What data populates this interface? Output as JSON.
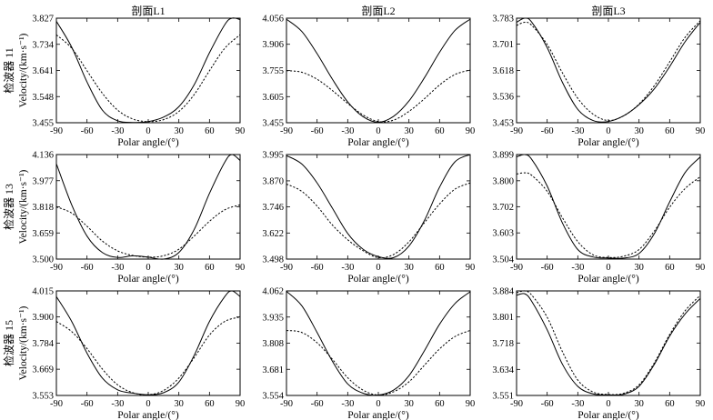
{
  "figure": {
    "column_titles": [
      "剖面L1",
      "剖面L2",
      "剖面L3"
    ],
    "row_titles": [
      "检波器 11",
      "检波器 13",
      "检波器 15"
    ],
    "ylabel": "Velocity/(km·s⁻¹)",
    "xlabel": "Polar angle/(°)"
  },
  "chart_data": [
    {
      "type": "line",
      "title": "剖面L1",
      "row_title": "检波器 11",
      "xlabel": "Polar angle/(°)",
      "ylabel": "Velocity/(km·s⁻¹)",
      "xlim": [
        -90,
        90
      ],
      "ylim": [
        3.455,
        3.827
      ],
      "xticks": [
        -90,
        -60,
        -30,
        0,
        30,
        60,
        90
      ],
      "yticks": [
        "3.455",
        "3.548",
        "3.641",
        "3.734",
        "3.827"
      ],
      "series": [
        {
          "name": "solid",
          "style": "solid",
          "x": [
            -90,
            -75,
            -60,
            -45,
            -30,
            -15,
            0,
            15,
            30,
            45,
            60,
            75,
            82,
            90
          ],
          "values": [
            3.816,
            3.724,
            3.6,
            3.5,
            3.462,
            3.456,
            3.459,
            3.475,
            3.512,
            3.59,
            3.704,
            3.804,
            3.827,
            3.822
          ]
        },
        {
          "name": "dashed",
          "style": "dashed",
          "x": [
            -90,
            -75,
            -60,
            -45,
            -30,
            -15,
            0,
            15,
            30,
            45,
            60,
            75,
            90
          ],
          "values": [
            3.768,
            3.72,
            3.64,
            3.56,
            3.5,
            3.468,
            3.459,
            3.466,
            3.495,
            3.555,
            3.64,
            3.72,
            3.768
          ]
        }
      ]
    },
    {
      "type": "line",
      "title": "剖面L2",
      "row_title": "检波器 11",
      "xlabel": "Polar angle/(°)",
      "ylabel": "Velocity/(km·s⁻¹)",
      "xlim": [
        -90,
        90
      ],
      "ylim": [
        3.455,
        4.056
      ],
      "xticks": [
        -90,
        -60,
        -30,
        0,
        30,
        60,
        90
      ],
      "yticks": [
        "3.455",
        "3.605",
        "3.755",
        "3.906",
        "4.056"
      ],
      "series": [
        {
          "name": "solid",
          "style": "solid",
          "x": [
            -90,
            -75,
            -60,
            -45,
            -30,
            -15,
            0,
            15,
            30,
            45,
            60,
            75,
            90
          ],
          "values": [
            4.05,
            3.98,
            3.852,
            3.705,
            3.575,
            3.49,
            3.458,
            3.492,
            3.58,
            3.712,
            3.86,
            3.985,
            4.05
          ]
        },
        {
          "name": "dashed",
          "style": "dashed",
          "x": [
            -90,
            -75,
            -60,
            -45,
            -30,
            -15,
            0,
            15,
            30,
            45,
            60,
            75,
            90
          ],
          "values": [
            3.755,
            3.745,
            3.705,
            3.64,
            3.566,
            3.5,
            3.462,
            3.47,
            3.52,
            3.592,
            3.672,
            3.732,
            3.758
          ]
        }
      ]
    },
    {
      "type": "line",
      "title": "剖面L3",
      "row_title": "检波器 11",
      "xlabel": "Polar angle/(°)",
      "ylabel": "Velocity/(km·s⁻¹)",
      "xlim": [
        -90,
        90
      ],
      "ylim": [
        3.453,
        3.783
      ],
      "xticks": [
        -90,
        -60,
        -30,
        0,
        30,
        60,
        90
      ],
      "yticks": [
        "3.453",
        "3.536",
        "3.618",
        "3.701",
        "3.783"
      ],
      "series": [
        {
          "name": "solid",
          "style": "solid",
          "x": [
            -90,
            -82,
            -75,
            -60,
            -45,
            -30,
            -15,
            0,
            15,
            30,
            45,
            60,
            75,
            90
          ],
          "values": [
            3.77,
            3.783,
            3.77,
            3.69,
            3.58,
            3.495,
            3.46,
            3.457,
            3.475,
            3.51,
            3.56,
            3.63,
            3.708,
            3.77
          ]
        },
        {
          "name": "dashed",
          "style": "dashed",
          "x": [
            -90,
            -82,
            -75,
            -60,
            -45,
            -30,
            -15,
            0,
            15,
            30,
            45,
            60,
            75,
            90
          ],
          "values": [
            3.76,
            3.77,
            3.76,
            3.7,
            3.61,
            3.53,
            3.48,
            3.46,
            3.475,
            3.512,
            3.57,
            3.645,
            3.722,
            3.775
          ]
        }
      ]
    },
    {
      "type": "line",
      "title": "",
      "row_title": "检波器 13",
      "xlabel": "Polar angle/(°)",
      "ylabel": "Velocity/(km·s⁻¹)",
      "xlim": [
        -90,
        90
      ],
      "ylim": [
        3.5,
        4.136
      ],
      "xticks": [
        -90,
        -60,
        -30,
        0,
        30,
        60,
        90
      ],
      "yticks": [
        "3.500",
        "3.659",
        "3.818",
        "3.977",
        "4.136"
      ],
      "series": [
        {
          "name": "solid",
          "style": "solid",
          "x": [
            -90,
            -75,
            -60,
            -45,
            -30,
            -15,
            0,
            15,
            30,
            45,
            60,
            75,
            82,
            90
          ],
          "values": [
            4.08,
            3.83,
            3.64,
            3.54,
            3.51,
            3.52,
            3.512,
            3.5,
            3.54,
            3.68,
            3.9,
            4.09,
            4.136,
            4.1
          ]
        },
        {
          "name": "dashed",
          "style": "dashed",
          "x": [
            -90,
            -75,
            -60,
            -45,
            -30,
            -15,
            0,
            15,
            30,
            45,
            60,
            75,
            90
          ],
          "values": [
            3.818,
            3.78,
            3.7,
            3.61,
            3.55,
            3.522,
            3.512,
            3.52,
            3.56,
            3.64,
            3.73,
            3.8,
            3.83
          ]
        }
      ]
    },
    {
      "type": "line",
      "title": "",
      "row_title": "检波器 13",
      "xlabel": "Polar angle/(°)",
      "ylabel": "Velocity/(km·s⁻¹)",
      "xlim": [
        -90,
        90
      ],
      "ylim": [
        3.498,
        3.995
      ],
      "xticks": [
        -90,
        -60,
        -30,
        0,
        30,
        60,
        90
      ],
      "yticks": [
        "3.498",
        "3.622",
        "3.746",
        "3.870",
        "3.995"
      ],
      "series": [
        {
          "name": "solid",
          "style": "solid",
          "x": [
            -90,
            -75,
            -60,
            -45,
            -30,
            -15,
            0,
            15,
            30,
            45,
            60,
            75,
            90
          ],
          "values": [
            3.99,
            3.95,
            3.86,
            3.74,
            3.62,
            3.545,
            3.51,
            3.505,
            3.56,
            3.68,
            3.84,
            3.96,
            3.995
          ]
        },
        {
          "name": "dashed",
          "style": "dashed",
          "x": [
            -90,
            -75,
            -60,
            -45,
            -30,
            -15,
            0,
            15,
            30,
            45,
            60,
            75,
            90
          ],
          "values": [
            3.855,
            3.82,
            3.75,
            3.66,
            3.59,
            3.538,
            3.505,
            3.52,
            3.58,
            3.67,
            3.76,
            3.83,
            3.86
          ]
        }
      ]
    },
    {
      "type": "line",
      "title": "",
      "row_title": "检波器 13",
      "xlabel": "Polar angle/(°)",
      "ylabel": "Velocity/(km·s⁻¹)",
      "xlim": [
        -90,
        90
      ],
      "ylim": [
        3.504,
        3.899
      ],
      "xticks": [
        -90,
        -60,
        -30,
        0,
        30,
        60,
        90
      ],
      "yticks": [
        "3.504",
        "3.603",
        "3.702",
        "3.800",
        "3.899"
      ],
      "series": [
        {
          "name": "solid",
          "style": "solid",
          "x": [
            -90,
            -82,
            -75,
            -60,
            -45,
            -30,
            -15,
            0,
            15,
            30,
            45,
            60,
            75,
            90
          ],
          "values": [
            3.89,
            3.899,
            3.88,
            3.78,
            3.64,
            3.54,
            3.512,
            3.508,
            3.508,
            3.525,
            3.6,
            3.72,
            3.83,
            3.89
          ]
        },
        {
          "name": "dashed",
          "style": "dashed",
          "x": [
            -90,
            -82,
            -75,
            -60,
            -45,
            -30,
            -15,
            0,
            15,
            30,
            45,
            60,
            75,
            90
          ],
          "values": [
            3.825,
            3.83,
            3.82,
            3.76,
            3.66,
            3.57,
            3.52,
            3.51,
            3.515,
            3.54,
            3.61,
            3.7,
            3.77,
            3.815
          ]
        }
      ]
    },
    {
      "type": "line",
      "title": "",
      "row_title": "检波器 15",
      "xlabel": "Polar angle/(°)",
      "ylabel": "Velocity/(km·s⁻¹)",
      "xlim": [
        -90,
        90
      ],
      "ylim": [
        3.553,
        4.015
      ],
      "xticks": [
        -90,
        -60,
        -30,
        0,
        30,
        60,
        90
      ],
      "yticks": [
        "3.553",
        "3.669",
        "3.784",
        "3.900",
        "4.015"
      ],
      "series": [
        {
          "name": "solid",
          "style": "solid",
          "x": [
            -90,
            -75,
            -60,
            -45,
            -30,
            -15,
            0,
            15,
            30,
            45,
            60,
            75,
            82,
            90
          ],
          "values": [
            3.99,
            3.88,
            3.74,
            3.63,
            3.578,
            3.563,
            3.556,
            3.565,
            3.612,
            3.73,
            3.88,
            3.99,
            4.015,
            3.99
          ]
        },
        {
          "name": "dashed",
          "style": "dashed",
          "x": [
            -90,
            -75,
            -60,
            -45,
            -30,
            -15,
            0,
            15,
            30,
            45,
            60,
            75,
            90
          ],
          "values": [
            3.88,
            3.835,
            3.76,
            3.67,
            3.6,
            3.565,
            3.556,
            3.575,
            3.63,
            3.72,
            3.82,
            3.88,
            3.9
          ]
        }
      ]
    },
    {
      "type": "line",
      "title": "",
      "row_title": "检波器 15",
      "xlabel": "Polar angle/(°)",
      "ylabel": "Velocity/(km·s⁻¹)",
      "xlim": [
        -90,
        90
      ],
      "ylim": [
        3.554,
        4.062
      ],
      "xticks": [
        -90,
        -60,
        -30,
        0,
        30,
        60,
        90
      ],
      "yticks": [
        "3.554",
        "3.681",
        "3.808",
        "3.935",
        "4.062"
      ],
      "series": [
        {
          "name": "solid",
          "style": "solid",
          "x": [
            -90,
            -75,
            -60,
            -45,
            -30,
            -15,
            0,
            15,
            30,
            45,
            60,
            75,
            90
          ],
          "values": [
            4.06,
            3.99,
            3.86,
            3.72,
            3.61,
            3.565,
            3.556,
            3.58,
            3.65,
            3.77,
            3.9,
            4.0,
            4.058
          ]
        },
        {
          "name": "dashed",
          "style": "dashed",
          "x": [
            -90,
            -75,
            -60,
            -45,
            -30,
            -15,
            0,
            15,
            30,
            45,
            60,
            75,
            90
          ],
          "values": [
            3.87,
            3.86,
            3.81,
            3.73,
            3.64,
            3.58,
            3.556,
            3.572,
            3.62,
            3.7,
            3.78,
            3.84,
            3.87
          ]
        }
      ]
    },
    {
      "type": "line",
      "title": "",
      "row_title": "检波器 15",
      "xlabel": "Polar angle/(°)",
      "ylabel": "Velocity/(km·s⁻¹)",
      "xlim": [
        -90,
        90
      ],
      "ylim": [
        3.551,
        3.884
      ],
      "xticks": [
        -90,
        -60,
        -30,
        0,
        30,
        60,
        90
      ],
      "yticks": [
        "3.551",
        "3.634",
        "3.718",
        "3.801",
        "3.884"
      ],
      "series": [
        {
          "name": "solid",
          "style": "solid",
          "x": [
            -90,
            -82,
            -75,
            -60,
            -45,
            -30,
            -15,
            0,
            15,
            30,
            45,
            60,
            75,
            90
          ],
          "values": [
            3.87,
            3.875,
            3.85,
            3.76,
            3.65,
            3.58,
            3.556,
            3.553,
            3.555,
            3.58,
            3.65,
            3.74,
            3.81,
            3.86
          ]
        },
        {
          "name": "dashed",
          "style": "dashed",
          "x": [
            -90,
            -82,
            -75,
            -60,
            -45,
            -30,
            -15,
            0,
            15,
            30,
            45,
            60,
            75,
            90
          ],
          "values": [
            3.878,
            3.884,
            3.87,
            3.8,
            3.69,
            3.6,
            3.562,
            3.554,
            3.558,
            3.585,
            3.655,
            3.745,
            3.82,
            3.87
          ]
        }
      ]
    }
  ]
}
